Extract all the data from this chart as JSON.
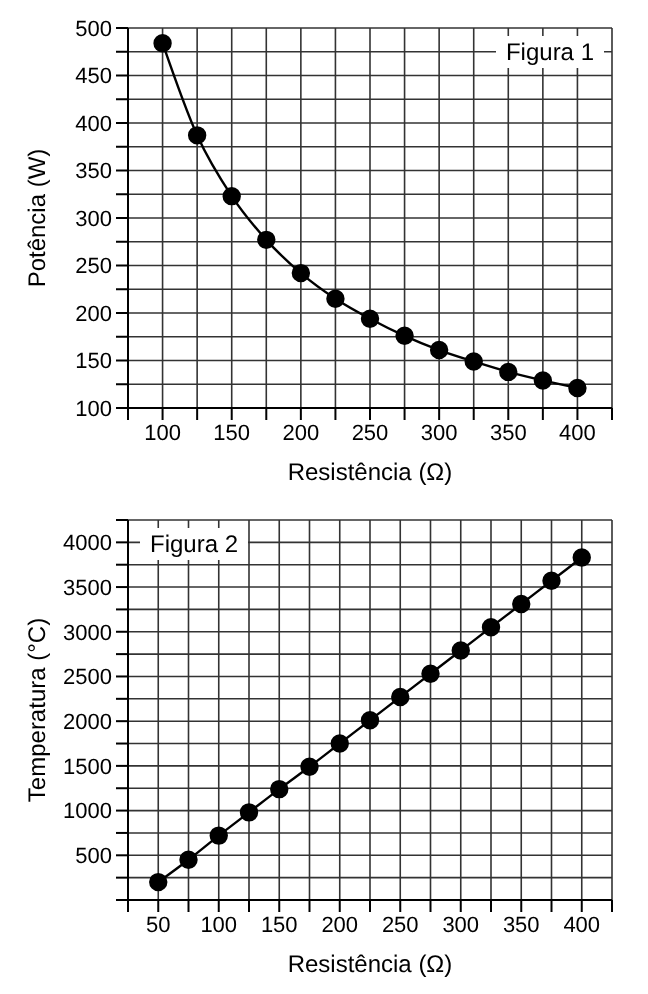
{
  "chart_data": [
    {
      "type": "line",
      "xlabel": "Resistência (Ω)",
      "ylabel": "Potência (W)",
      "annotations": [
        "Figura 1"
      ],
      "x": [
        100,
        125,
        150,
        175,
        200,
        225,
        250,
        275,
        300,
        325,
        350,
        375,
        400
      ],
      "series": [
        {
          "color": "#000000",
          "values": [
            484,
            387,
            323,
            277,
            242,
            215,
            194,
            176,
            161,
            149,
            138,
            129,
            121
          ]
        }
      ],
      "xlim": [
        75,
        425
      ],
      "ylim": [
        100,
        500
      ],
      "xticks": [
        {
          "value": 75,
          "label": null
        },
        100,
        {
          "value": 125,
          "label": null
        },
        150,
        {
          "value": 175,
          "label": null
        },
        200,
        {
          "value": 225,
          "label": null
        },
        250,
        {
          "value": 275,
          "label": null
        },
        300,
        {
          "value": 325,
          "label": null
        },
        350,
        {
          "value": 375,
          "label": null
        },
        400,
        {
          "value": 425,
          "label": null
        }
      ],
      "yticks": [
        100,
        {
          "value": 125,
          "label": null
        },
        150,
        {
          "value": 175,
          "label": null
        },
        200,
        {
          "value": 225,
          "label": null
        },
        250,
        {
          "value": 275,
          "label": null
        },
        300,
        {
          "value": 325,
          "label": null
        },
        350,
        {
          "value": 375,
          "label": null
        },
        400,
        {
          "value": 425,
          "label": null
        },
        450,
        {
          "value": 475,
          "label": null
        },
        500
      ],
      "grid": true,
      "marker": "circle",
      "line_style": "solid"
    },
    {
      "type": "line",
      "xlabel": "Resistência (Ω)",
      "ylabel": "Temperatura (°C)",
      "annotations": [
        "Figura 2"
      ],
      "x": [
        50,
        75,
        100,
        125,
        150,
        175,
        200,
        225,
        250,
        275,
        300,
        325,
        350,
        375,
        400
      ],
      "series": [
        {
          "color": "#000000",
          "values": [
            200,
            450,
            720,
            980,
            1240,
            1490,
            1750,
            2010,
            2270,
            2530,
            2790,
            3050,
            3310,
            3570,
            3830
          ]
        }
      ],
      "xlim": [
        25,
        425
      ],
      "ylim": [
        0,
        4250
      ],
      "xticks": [
        {
          "value": 25,
          "label": null
        },
        50,
        {
          "value": 75,
          "label": null
        },
        100,
        {
          "value": 125,
          "label": null
        },
        150,
        {
          "value": 175,
          "label": null
        },
        200,
        {
          "value": 225,
          "label": null
        },
        250,
        {
          "value": 275,
          "label": null
        },
        300,
        {
          "value": 325,
          "label": null
        },
        350,
        {
          "value": 375,
          "label": null
        },
        400,
        {
          "value": 425,
          "label": null
        }
      ],
      "yticks": [
        {
          "value": 0,
          "label": null
        },
        {
          "value": 250,
          "label": null
        },
        500,
        {
          "value": 750,
          "label": null
        },
        1000,
        {
          "value": 1250,
          "label": null
        },
        1500,
        {
          "value": 1750,
          "label": null
        },
        2000,
        {
          "value": 2250,
          "label": null
        },
        2500,
        {
          "value": 2750,
          "label": null
        },
        3000,
        {
          "value": 3250,
          "label": null
        },
        3500,
        {
          "value": 3750,
          "label": null
        },
        4000,
        {
          "value": 4250,
          "label": null
        }
      ],
      "grid": true,
      "marker": "circle",
      "line_style": "solid"
    }
  ]
}
